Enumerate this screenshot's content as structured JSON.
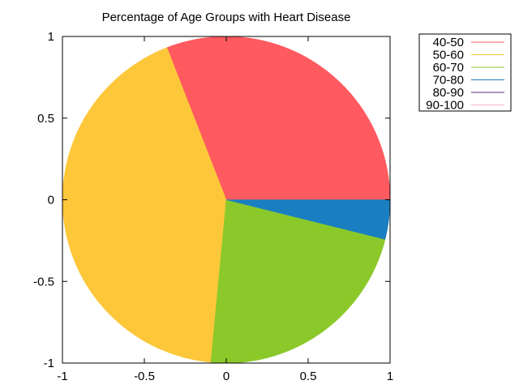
{
  "chart_data": {
    "type": "pie",
    "title": "Percentage of Age Groups with Heart Disease",
    "xlabel": "",
    "ylabel": "",
    "xlim": [
      -1,
      1
    ],
    "ylim": [
      -1,
      1
    ],
    "xticks": [
      "-1",
      "-0.5",
      "0",
      "0.5",
      "1"
    ],
    "yticks": [
      "-1",
      "-0.5",
      "0",
      "0.5",
      "1"
    ],
    "grid": false,
    "legend_position": "top-right",
    "slices": [
      {
        "label": "40-50",
        "value": 30.9,
        "color": "#ff5a5f"
      },
      {
        "label": "50-60",
        "value": 42.6,
        "color": "#fdc73a"
      },
      {
        "label": "60-70",
        "value": 22.6,
        "color": "#8bc92a"
      },
      {
        "label": "70-80",
        "value": 3.9,
        "color": "#1a7fc1"
      },
      {
        "label": "80-90",
        "value": 0,
        "color": "#5b2a86"
      },
      {
        "label": "90-100",
        "value": 0,
        "color": "#f7b6c2"
      }
    ]
  }
}
